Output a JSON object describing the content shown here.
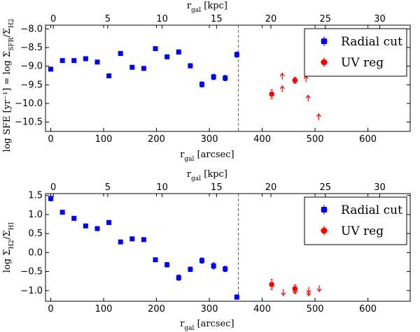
{
  "chart_data": [
    {
      "type": "scatter",
      "top_axis_label": "r_gal [kpc]",
      "xlabel": "r_gal [arcsec]",
      "ylabel": "log SFE [yr⁻¹] = log Σ_SFR/Σ_H2",
      "xlim": [
        -10,
        680
      ],
      "ylim": [
        -10.75,
        -7.9
      ],
      "top_xlim_kpc": [
        -0.72,
        32.8
      ],
      "x_ticks": [
        0,
        100,
        200,
        300,
        400,
        500,
        600
      ],
      "x_tick_labels": [
        "0",
        "100",
        "200",
        "300",
        "400",
        "500",
        "600"
      ],
      "top_ticks": [
        0,
        5,
        10,
        15,
        20,
        25,
        30
      ],
      "top_tick_labels": [
        "0",
        "5",
        "10",
        "15",
        "20",
        "25",
        "30"
      ],
      "y_ticks": [
        -10.5,
        -10.0,
        -9.5,
        -9.0,
        -8.5,
        -8.0
      ],
      "y_tick_labels": [
        "−10.5",
        "−10.0",
        "−9.5",
        "−9.0",
        "−8.5",
        "−8.0"
      ],
      "vline_x": 355,
      "legend": {
        "position": "top-right",
        "entries": [
          "Radial cut",
          "UV reg"
        ]
      },
      "series": [
        {
          "name": "Radial cut",
          "marker": "square",
          "color": "#0000ff",
          "x": [
            0,
            22,
            44,
            66,
            88,
            110,
            132,
            154,
            176,
            198,
            220,
            242,
            264,
            286,
            308,
            330,
            352
          ],
          "y": [
            -9.08,
            -8.85,
            -8.85,
            -8.8,
            -8.89,
            -9.26,
            -8.66,
            -9.03,
            -9.06,
            -8.53,
            -8.75,
            -8.62,
            -8.99,
            -9.49,
            -9.29,
            -9.32,
            -8.69
          ],
          "yerr": [
            0.05,
            0.04,
            0.04,
            0.04,
            0.04,
            0.04,
            0.04,
            0.04,
            0.04,
            0.05,
            0.05,
            0.06,
            0.06,
            0.07,
            0.07,
            0.07,
            0.07
          ]
        },
        {
          "name": "UV reg",
          "marker": "circle",
          "color": "#ff0000",
          "x": [
            418,
            462
          ],
          "y": [
            -9.75,
            -9.38
          ],
          "yerr": [
            0.12,
            0.08
          ]
        }
      ],
      "limits": {
        "color": "#ff0000",
        "direction": "up",
        "x": [
          438,
          438,
          483,
          487,
          507
        ],
        "y": [
          -9.7,
          -9.36,
          -9.43,
          -9.95,
          -10.45
        ]
      }
    },
    {
      "type": "scatter",
      "top_axis_label": "r_gal [kpc]",
      "xlabel": "r_gal [arcsec]",
      "ylabel": "log Σ_H2/Σ_HI",
      "xlim": [
        -10,
        680
      ],
      "ylim": [
        -1.28,
        1.55
      ],
      "top_xlim_kpc": [
        -0.72,
        32.8
      ],
      "x_ticks": [
        0,
        100,
        200,
        300,
        400,
        500,
        600
      ],
      "x_tick_labels": [
        "0",
        "100",
        "200",
        "300",
        "400",
        "500",
        "600"
      ],
      "top_ticks": [
        0,
        5,
        10,
        15,
        20,
        25,
        30
      ],
      "top_tick_labels": [
        "0",
        "5",
        "10",
        "15",
        "20",
        "25",
        "30"
      ],
      "y_ticks": [
        -1.0,
        -0.5,
        0.0,
        0.5,
        1.0,
        1.5
      ],
      "y_tick_labels": [
        "−1.0",
        "−0.5",
        "0.0",
        "0.5",
        "1.0",
        "1.5"
      ],
      "vline_x": 355,
      "legend": {
        "position": "top-right",
        "entries": [
          "Radial cut",
          "UV reg"
        ]
      },
      "series": [
        {
          "name": "Radial cut",
          "marker": "square",
          "color": "#0000ff",
          "x": [
            0,
            22,
            44,
            66,
            88,
            110,
            132,
            154,
            176,
            198,
            220,
            242,
            264,
            286,
            308,
            330,
            352
          ],
          "y": [
            1.42,
            1.06,
            0.9,
            0.7,
            0.63,
            0.79,
            0.28,
            0.36,
            0.34,
            -0.19,
            -0.32,
            -0.66,
            -0.44,
            -0.21,
            -0.35,
            -0.43,
            -1.17
          ],
          "yerr": [
            0.06,
            0.03,
            0.03,
            0.03,
            0.03,
            0.04,
            0.03,
            0.04,
            0.04,
            0.05,
            0.06,
            0.07,
            0.06,
            0.07,
            0.08,
            0.07,
            0.06
          ]
        },
        {
          "name": "UV reg",
          "marker": "circle",
          "color": "#ff0000",
          "x": [
            418,
            462
          ],
          "y": [
            -0.84,
            -0.95
          ],
          "yerr": [
            0.13,
            0.1
          ]
        }
      ],
      "limits": {
        "color": "#ff0000",
        "direction": "down",
        "x": [
          440,
          462,
          488,
          488,
          508
        ],
        "y": [
          -0.96,
          -0.92,
          -0.9,
          -0.97,
          -0.86
        ]
      }
    }
  ]
}
